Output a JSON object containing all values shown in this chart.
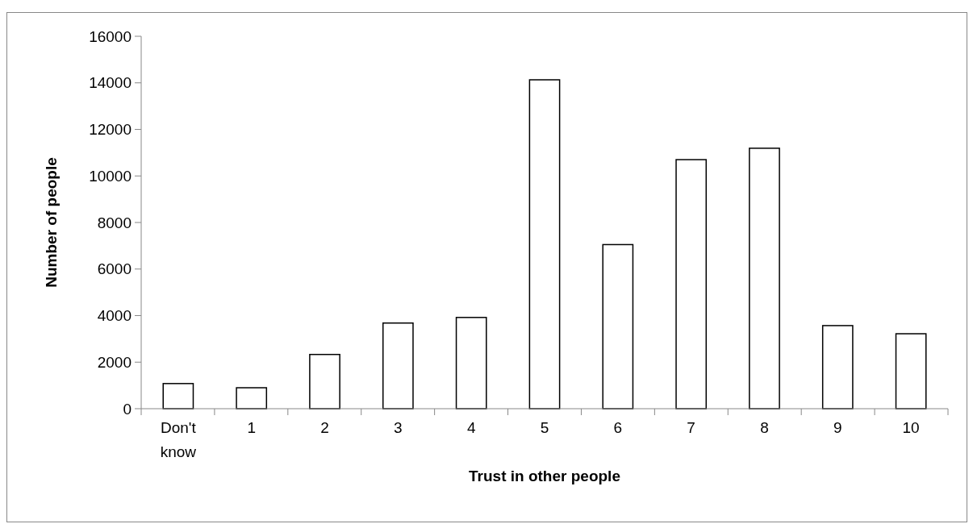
{
  "chart_data": {
    "type": "bar",
    "xlabel": "Trust in other people",
    "ylabel": "Number of people",
    "categories": [
      "Don't know",
      "1",
      "2",
      "3",
      "4",
      "5",
      "6",
      "7",
      "8",
      "9",
      "10"
    ],
    "values": [
      1080,
      900,
      2330,
      3680,
      3920,
      14130,
      7050,
      10700,
      11190,
      3570,
      3220
    ],
    "color": "#ffffff",
    "ylim": [
      0,
      16000
    ],
    "yticks": [
      0,
      2000,
      4000,
      6000,
      8000,
      10000,
      12000,
      14000,
      16000
    ],
    "grid": false
  }
}
